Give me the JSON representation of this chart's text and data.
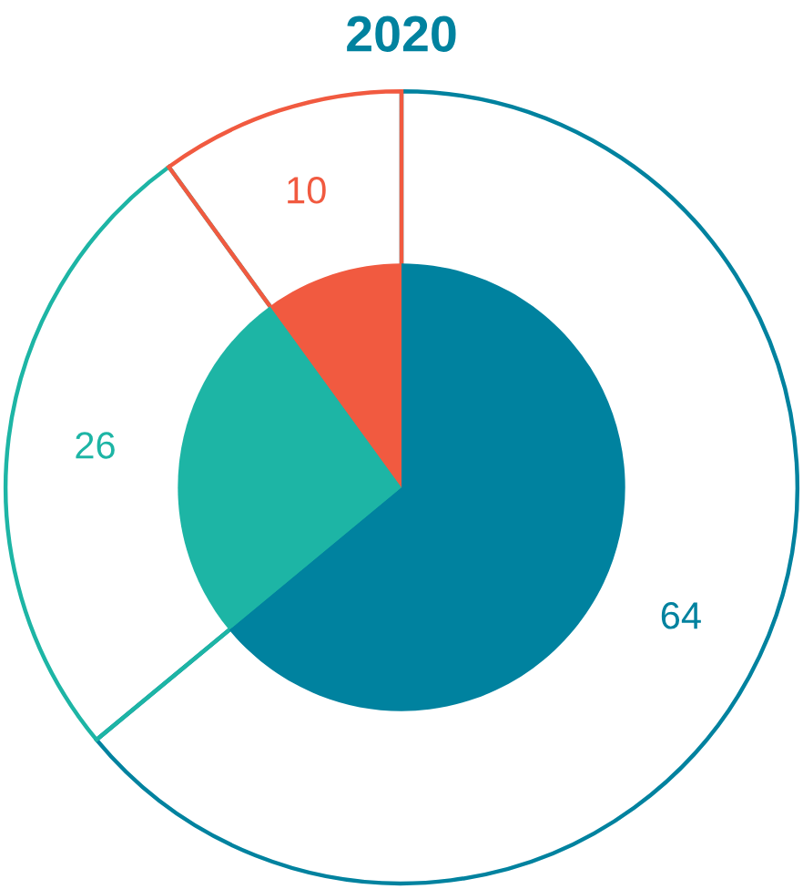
{
  "chart_data": {
    "type": "pie",
    "title": "2020",
    "categories": [
      null,
      null,
      null
    ],
    "values": [
      64,
      26,
      10
    ],
    "colors": [
      "#00829f",
      "#1db5a5",
      "#f15a40"
    ],
    "data_labels": true
  }
}
